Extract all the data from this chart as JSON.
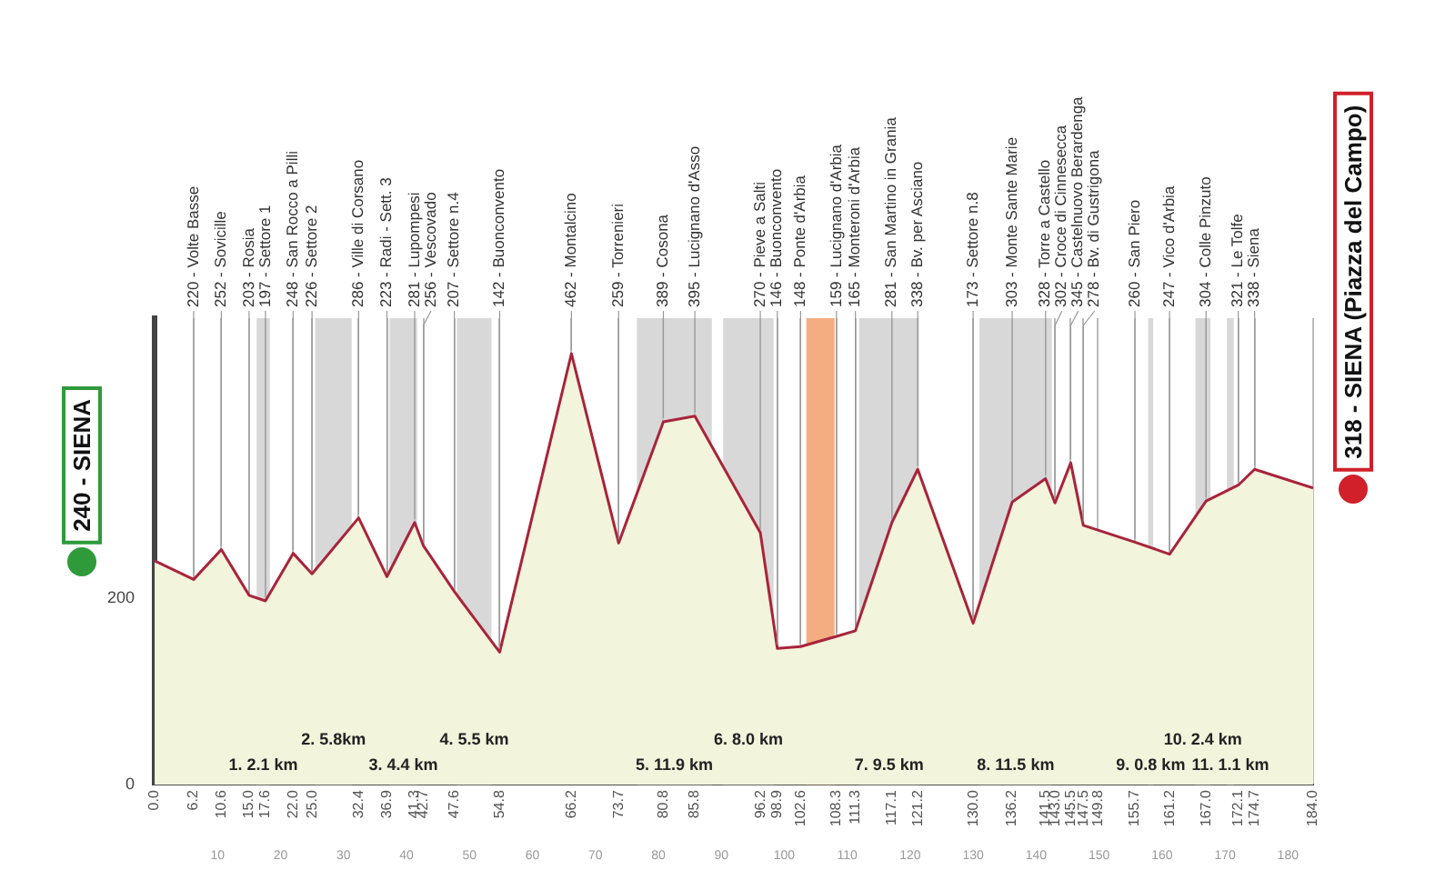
{
  "chart_data": {
    "type": "area",
    "x": [
      0,
      6.2,
      10.6,
      15.0,
      17.6,
      22.0,
      25.0,
      32.4,
      36.9,
      41.3,
      42.7,
      47.6,
      54.8,
      66.2,
      73.7,
      80.8,
      85.8,
      96.2,
      98.9,
      102.6,
      108.3,
      111.3,
      117.1,
      121.2,
      130.0,
      136.2,
      141.5,
      143.0,
      145.5,
      147.5,
      155.7,
      161.2,
      167.0,
      172.1,
      174.7,
      184
    ],
    "series": [
      {
        "color": "#a8243a",
        "values": [
          240,
          220,
          252,
          203,
          197,
          248,
          226,
          286,
          223,
          281,
          256,
          207,
          142,
          462,
          259,
          389,
          395,
          270,
          146,
          148,
          159,
          165,
          281,
          338,
          173,
          303,
          328,
          302,
          345,
          278,
          260,
          247,
          304,
          321,
          338,
          318
        ]
      }
    ],
    "xlim": [
      0,
      184
    ],
    "xticks": [
      {
        "value": 0,
        "label": "0.0"
      },
      6.2,
      10.6,
      {
        "value": 15,
        "label": "15.0"
      },
      17.6,
      {
        "value": 22,
        "label": "22.0"
      },
      {
        "value": 25,
        "label": "25.0"
      },
      32.4,
      36.9,
      41.3,
      42.7,
      47.6,
      54.8,
      66.2,
      73.7,
      80.8,
      85.8,
      96.2,
      98.9,
      102.6,
      108.3,
      111.3,
      117.1,
      121.2,
      {
        "value": 130,
        "label": "130.0"
      },
      136.2,
      141.5,
      {
        "value": 143,
        "label": "143.0"
      },
      145.5,
      147.5,
      149.8,
      155.7,
      161.2,
      {
        "value": 167,
        "label": "167.0"
      },
      172.1,
      174.7,
      {
        "value": 184,
        "label": "184.0"
      }
    ],
    "x2lim": [
      0,
      184
    ],
    "x2ticks": [
      10,
      20,
      30,
      40,
      50,
      60,
      70,
      80,
      90,
      100,
      110,
      120,
      130,
      140,
      150,
      160,
      170,
      180
    ],
    "ylim": [
      0,
      500
    ],
    "yticks": [
      0,
      200
    ],
    "grid": "x",
    "bands": [
      {
        "axis": "x",
        "from": 16.2,
        "to": 18.3,
        "label": "1. 2.1 km",
        "color": "#c8c8c8"
      },
      {
        "axis": "x",
        "from": 25.5,
        "to": 31.3,
        "label": "2. 5.8km",
        "color": "#c8c8c8"
      },
      {
        "axis": "x",
        "from": 37.3,
        "to": 41.7,
        "label": "3. 4.4 km",
        "color": "#c8c8c8"
      },
      {
        "axis": "x",
        "from": 48.0,
        "to": 53.5,
        "label": "4. 5.5 km",
        "color": "#c8c8c8"
      },
      {
        "axis": "x",
        "from": 76.6,
        "to": 88.5,
        "label": "5. 11.9 km",
        "color": "#c8c8c8"
      },
      {
        "axis": "x",
        "from": 90.3,
        "to": 98.3,
        "label": "6. 8.0 km",
        "color": "#c8c8c8"
      },
      {
        "axis": "x",
        "from": 103.5,
        "to": 108.0,
        "color": "#f08a4b"
      },
      {
        "axis": "x",
        "from": 111.9,
        "to": 121.4,
        "label": "7. 9.5 km",
        "color": "#c8c8c8"
      },
      {
        "axis": "x",
        "from": 131.0,
        "to": 142.5,
        "label": "8. 11.5 km",
        "color": "#c8c8c8"
      },
      {
        "axis": "x",
        "from": 157.8,
        "to": 158.6,
        "label": "9. 0.8 km",
        "color": "#c8c8c8"
      },
      {
        "axis": "x",
        "from": 165.3,
        "to": 167.7,
        "label": "10. 2.4 km",
        "color": "#c8c8c8"
      },
      {
        "axis": "x",
        "from": 170.3,
        "to": 171.4,
        "label": "11. 1.1 km",
        "color": "#c8c8c8"
      }
    ],
    "annotations": [
      {
        "text": "240 - SIENA",
        "x": 0,
        "y": 240
      },
      {
        "text": "220 - Volte Basse",
        "x": 6.2,
        "y": 220
      },
      {
        "text": "252 - Sovicille",
        "x": 10.6,
        "y": 252
      },
      {
        "text": "203 - Rosia",
        "x": 15.0,
        "y": 203
      },
      {
        "text": "197 - Settore 1",
        "x": 17.6,
        "y": 197
      },
      {
        "text": "248 - San Rocco a Pilli",
        "x": 22.0,
        "y": 248
      },
      {
        "text": "226 - Settore 2",
        "x": 25.0,
        "y": 226
      },
      {
        "text": "286 - Ville di Corsano",
        "x": 32.4,
        "y": 286
      },
      {
        "text": "223 - Radi - Sett. 3",
        "x": 36.9,
        "y": 223
      },
      {
        "text": "281 - Lupompesi",
        "x": 41.3,
        "y": 281
      },
      {
        "text": "256 - Vescovado",
        "x": 42.7,
        "y": 256
      },
      {
        "text": "207 - Settore n.4",
        "x": 47.6,
        "y": 207
      },
      {
        "text": "142 - Buonconvento",
        "x": 54.8,
        "y": 142
      },
      {
        "text": "462 - Montalcino",
        "x": 66.2,
        "y": 462
      },
      {
        "text": "259 - Torrenieri",
        "x": 73.7,
        "y": 259
      },
      {
        "text": "389 - Cosona",
        "x": 80.8,
        "y": 389
      },
      {
        "text": "395 - Lucignano d'Asso",
        "x": 85.8,
        "y": 395
      },
      {
        "text": "270 - Pieve a Salti",
        "x": 96.2,
        "y": 270
      },
      {
        "text": "146 - Buonconvento",
        "x": 98.9,
        "y": 146
      },
      {
        "text": "148 - Ponte d'Arbia",
        "x": 102.6,
        "y": 148
      },
      {
        "text": "159 - Lucignano d'Arbia",
        "x": 108.3,
        "y": 159
      },
      {
        "text": "165 - Monteroni d'Arbia",
        "x": 111.3,
        "y": 165
      },
      {
        "text": "281 - San Martino in Grania",
        "x": 117.1,
        "y": 281
      },
      {
        "text": "338 - Bv. per Asciano",
        "x": 121.2,
        "y": 338
      },
      {
        "text": "173 - Settore n.8",
        "x": 130.0,
        "y": 173
      },
      {
        "text": "303 - Monte Sante Marie",
        "x": 136.2,
        "y": 303
      },
      {
        "text": "328 - Torre a Castello",
        "x": 141.5,
        "y": 328
      },
      {
        "text": "302 - Croce di Cinnesecca",
        "x": 143.0,
        "y": 302
      },
      {
        "text": "345 - Castelnuovo Berardenga",
        "x": 145.5,
        "y": 345
      },
      {
        "text": "278 - Bv. di Gustrigona",
        "x": 147.5,
        "y": 278
      },
      {
        "text": "260 - San Piero",
        "x": 155.7,
        "y": 260
      },
      {
        "text": "247 - Vico d'Arbia",
        "x": 161.2,
        "y": 247
      },
      {
        "text": "304 - Colle Pinzuto",
        "x": 167.0,
        "y": 304
      },
      {
        "text": "321 - Le Tolfe",
        "x": 172.1,
        "y": 321
      },
      {
        "text": "338 - Siena",
        "x": 174.7,
        "y": 338
      },
      {
        "text": "318 - SIENA (Piazza del Campo)",
        "x": 184,
        "y": 318
      }
    ]
  }
}
